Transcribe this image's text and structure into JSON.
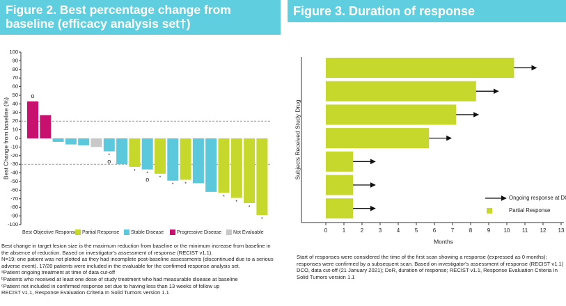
{
  "chart_data": [
    {
      "type": "waterfall",
      "title": "Figure 2. Best percentage change from baseline (efficacy analysis set†)",
      "ylabel": "Best Change from baseline (%)",
      "values": [
        43,
        27,
        -4,
        -7,
        -8,
        -10,
        -15,
        -30,
        -33,
        -36,
        -41,
        -49,
        -48,
        -52,
        -62,
        -63,
        -69,
        -75,
        -89
      ],
      "colors": [
        "#c8106e",
        "#c8106e",
        "#5bc8dc",
        "#5bc8dc",
        "#5bc8dc",
        "#c8c8c8",
        "#5bc8dc",
        "#5bc8dc",
        "#c6d82c",
        "#5bc8dc",
        "#c6d82c",
        "#5bc8dc",
        "#c6d82c",
        "#5bc8dc",
        "#5bc8dc",
        "#c6d82c",
        "#c6d82c",
        "#c6d82c",
        "#c6d82c"
      ],
      "notes": [
        [
          "o"
        ],
        null,
        null,
        null,
        null,
        null,
        [
          "*",
          "o"
        ],
        null,
        [
          "*"
        ],
        [
          "*",
          "o"
        ],
        [
          "*"
        ],
        [
          "*"
        ],
        [
          "*"
        ],
        null,
        null,
        [
          "*"
        ],
        [
          "*"
        ],
        [
          "*"
        ],
        [
          "*"
        ]
      ],
      "ylim": [
        -100,
        100
      ],
      "yticks": [
        -100,
        -90,
        -80,
        -70,
        -60,
        -50,
        -40,
        -30,
        -20,
        -10,
        0,
        10,
        20,
        30,
        40,
        50,
        60,
        70,
        80,
        90,
        100
      ],
      "reference_lines": [
        20,
        -30
      ],
      "legend_title": "Best Objective Response:",
      "legend": [
        {
          "name": "Partial Response",
          "color": "#c6d82c"
        },
        {
          "name": "Stable Disease",
          "color": "#5bc8dc"
        },
        {
          "name": "Progressive Disease",
          "color": "#c8106e"
        },
        {
          "name": "Not Evaluable",
          "color": "#c8c8c8"
        }
      ],
      "footnotes": [
        "Best change in target lesion size is the maximum reduction from baseline or the minimum increase from baseline in the absence of reduction. Based on investigator's assessment of response (RECIST v1.1).",
        "N=19; one patient was not plotted as they had incomplete post-baseline assessments (discontinued due to a serious adverse event). 17/20 patients were included in the evaluable for the confirmed response analysis set.",
        "ᵃPatient ongoing treatment at time of data cut-off",
        "ᵇPatients who received at least one dose of study treatment who had measurable disease at baseline",
        "ᶜPatient not included in confirmed response set due to having less than 13 weeks of follow up",
        "RECIST v1.1, Response Evaluation Criteria In Solid Tumors version 1.1"
      ]
    },
    {
      "type": "swimmer",
      "title": "Figure 3. Duration of response",
      "xlabel": "Months",
      "ylabel": "Subjects Received Study Drug",
      "values": [
        10.4,
        8.3,
        7.2,
        5.7,
        1.5,
        1.5,
        1.5
      ],
      "ongoing": [
        true,
        true,
        true,
        true,
        true,
        true,
        true
      ],
      "color": "#c6d82c",
      "xlim": [
        0,
        13
      ],
      "xticks": [
        0,
        1,
        2,
        3,
        4,
        5,
        6,
        7,
        8,
        9,
        10,
        11,
        12,
        13
      ],
      "legend": [
        {
          "name": "Ongoing response at DCO",
          "kind": "arrow"
        },
        {
          "name": "Partial Response",
          "kind": "bar"
        }
      ],
      "footnotes": [
        "Start of responses were considered the time of the first scan showing a response (expressed as 0 months); responses were confirmed by a subsequent scan. Based on investigator's assessment of response (RECIST v1.1)",
        "DCO, data cut-off (21 January 2021); DoR, duration of response; RECIST v1.1, Response Evaluation Criteria In Solid Tumors version 1.1"
      ]
    }
  ]
}
